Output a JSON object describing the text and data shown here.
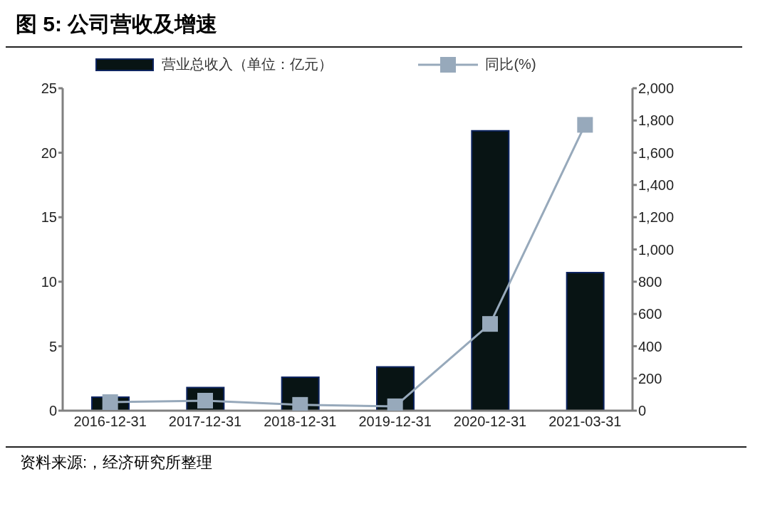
{
  "chart_data": {
    "type": "bar",
    "title": "图 5:  公司营收及增速",
    "categories": [
      "2016-12-31",
      "2017-12-31",
      "2018-12-31",
      "2019-12-31",
      "2020-12-31",
      "2021-03-31"
    ],
    "series": [
      {
        "name": "营业总收入（单位：亿元）",
        "color": "#081414",
        "values": [
          1.05,
          1.8,
          2.6,
          3.4,
          21.7,
          10.7
        ]
      },
      {
        "name": "同比(%)",
        "type": "line",
        "axis": "y2",
        "color": "#97a9bb",
        "marker": "square",
        "values": [
          53,
          62,
          36,
          27,
          538,
          1773
        ]
      }
    ],
    "ylim": [
      0,
      25
    ],
    "yticks": [
      0,
      5,
      10,
      15,
      20,
      25
    ],
    "y2lim": [
      0,
      2000
    ],
    "y2ticks": [
      0,
      200,
      400,
      600,
      800,
      {
        "value": 1000,
        "label": "1,000"
      },
      {
        "value": 1200,
        "label": "1,200"
      },
      {
        "value": 1400,
        "label": "1,400"
      },
      {
        "value": 1600,
        "label": "1,600"
      },
      {
        "value": 1800,
        "label": "1,800"
      },
      {
        "value": 2000,
        "label": "2,000"
      }
    ],
    "grid": false,
    "legend": "top",
    "annotations": [
      "资料来源:，经济研究所整理"
    ]
  }
}
